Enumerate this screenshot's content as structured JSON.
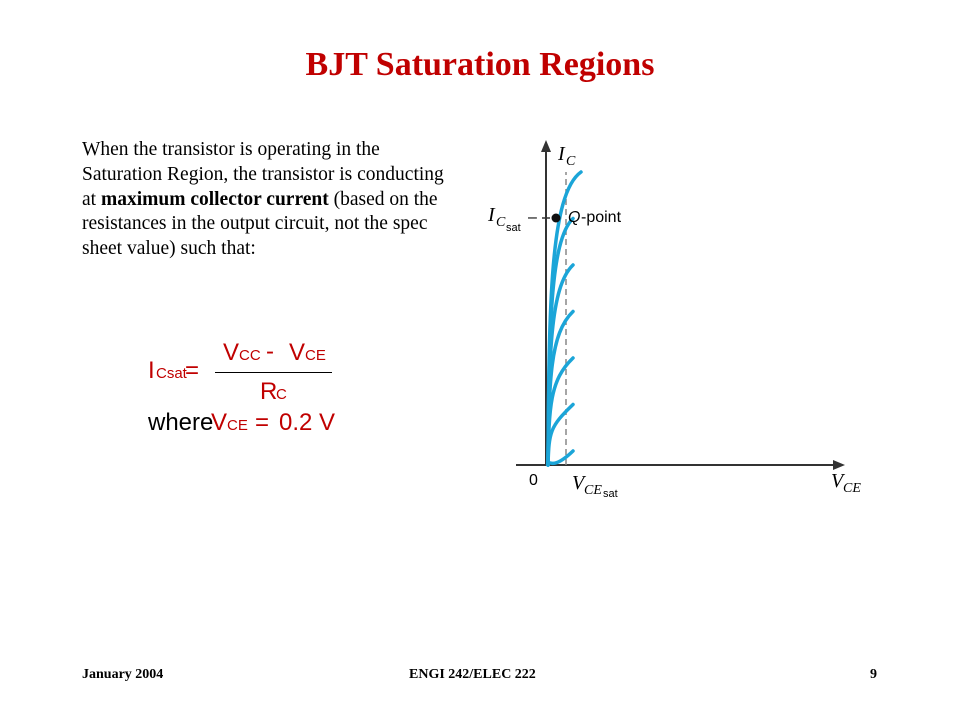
{
  "title": "BJT Saturation Regions",
  "colors": {
    "title": "#c00000",
    "formula": "#c00000",
    "curve": "#1ba5d8",
    "axis": "#333333"
  },
  "body": {
    "text_1": "When the transistor is operating in the Saturation Region, the transistor is conducting at ",
    "emphasis": "maximum collector current",
    "text_2": " (based on the resistances in the output circuit, not the spec sheet value) such that:"
  },
  "formula": {
    "lhs_main": "I",
    "lhs_sub": "Csat",
    "equals": "=",
    "num_v1": "V",
    "num_v1_sub": "CC",
    "minus": "-",
    "num_v2": "V",
    "num_v2_sub": "CE",
    "den_r": "R",
    "den_r_sub": "C",
    "where_word": "where",
    "where_v": "V",
    "where_v_sub": "CE",
    "where_eq": "=",
    "where_value": "0.2 V"
  },
  "graph": {
    "y_axis_main": "I",
    "y_axis_sub": "C",
    "ic_sat_main": "I",
    "ic_sat_sub1": "C",
    "ic_sat_sub2": "sat",
    "ic_sat_dash": "–",
    "qpoint_q": "Q",
    "qpoint_rest": "-point",
    "origin": "0",
    "vce_sat_main": "V",
    "vce_sat_sub1": "CE",
    "vce_sat_sub2": "sat",
    "x_axis_main": "V",
    "x_axis_sub": "CE",
    "curve_count": 7
  },
  "footer": {
    "date": "January 2004",
    "course": "ENGI 242/ELEC 222",
    "page": "9"
  }
}
